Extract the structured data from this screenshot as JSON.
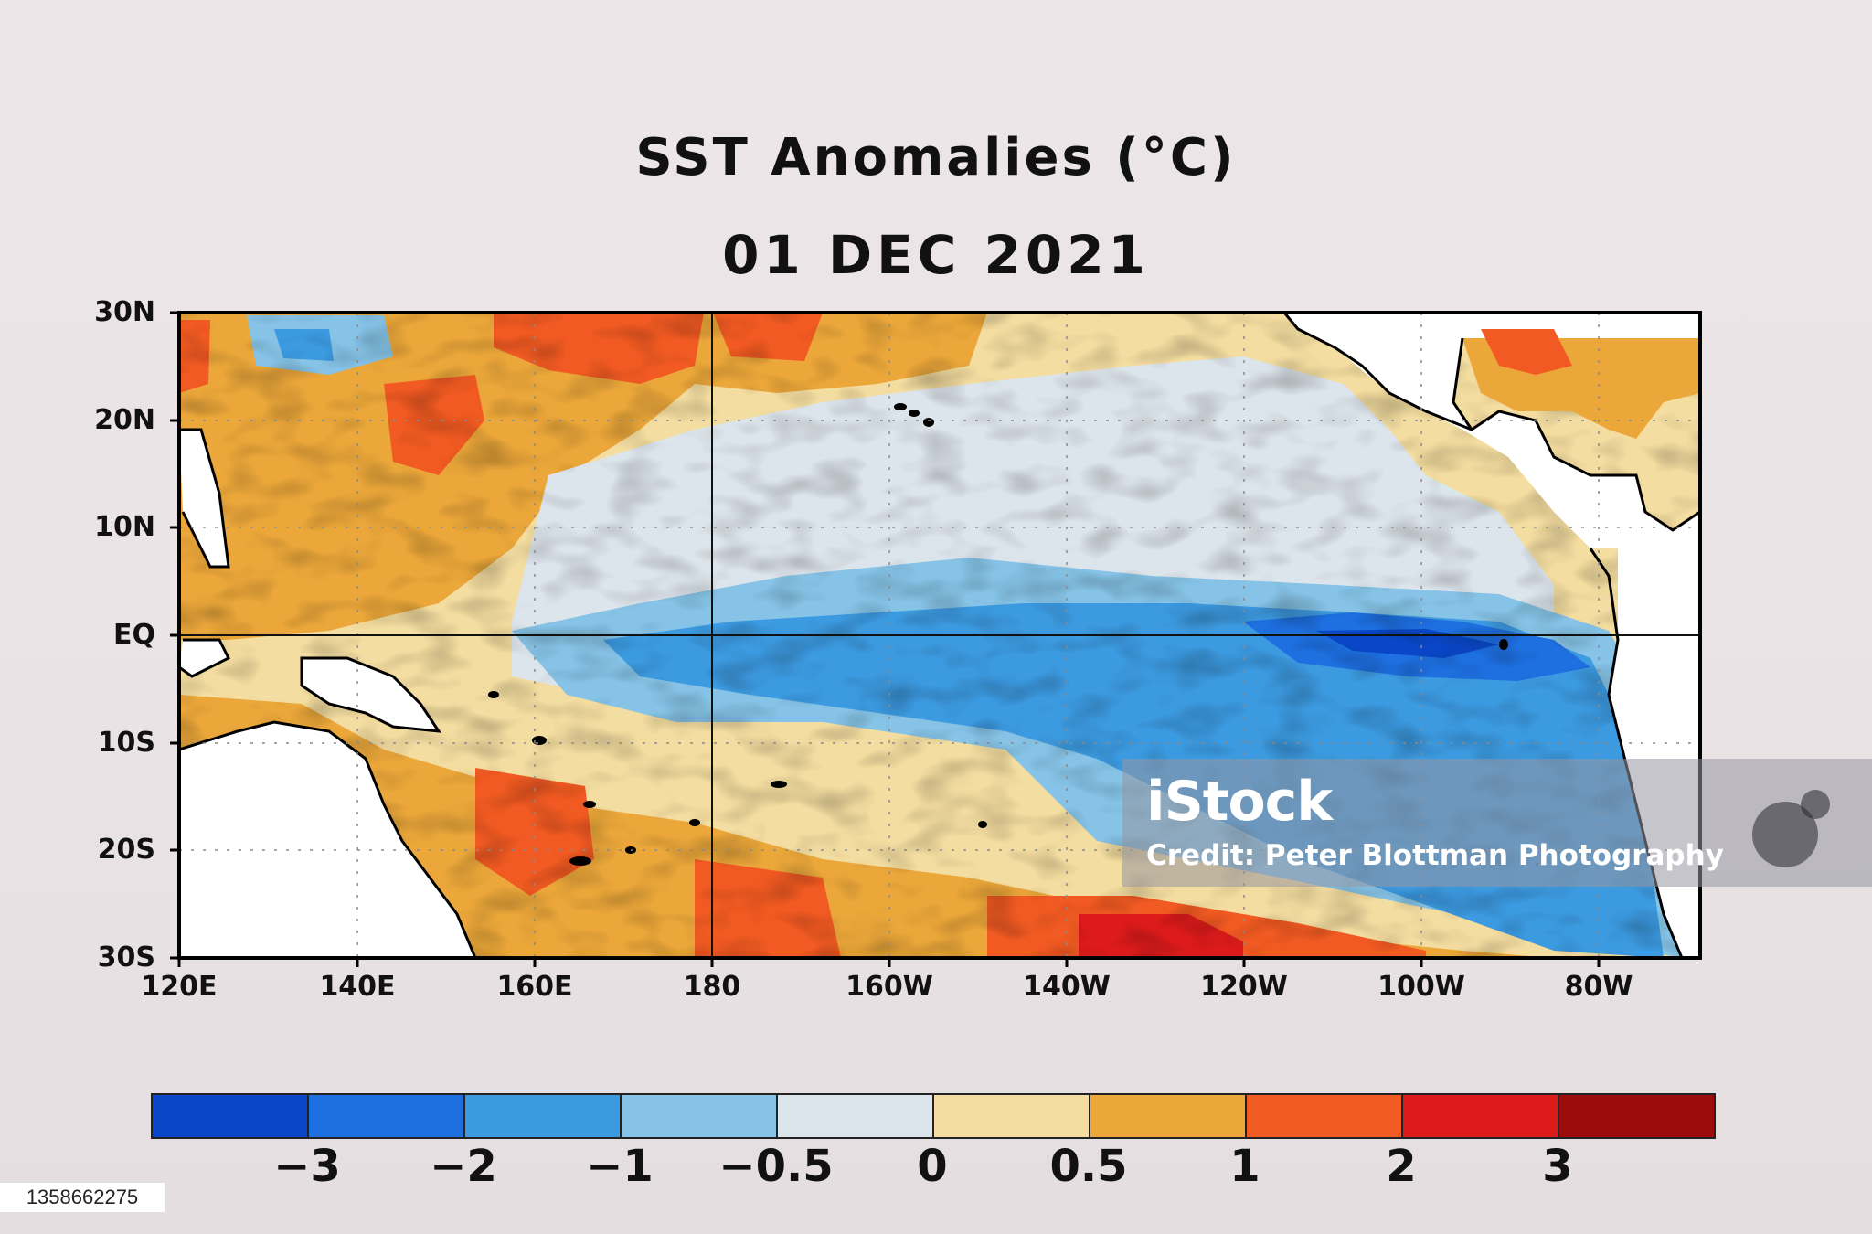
{
  "title": "SST Anomalies (°C)",
  "date": "01 DEC 2021",
  "map": {
    "lat_labels": [
      "30N",
      "20N",
      "10N",
      "EQ",
      "10S",
      "20S",
      "30S"
    ],
    "lon_labels": [
      "120E",
      "140E",
      "160E",
      "180",
      "160W",
      "140W",
      "120W",
      "100W",
      "80W"
    ],
    "lat_range": [
      -30,
      30
    ],
    "lon_range": [
      "120E",
      "70W"
    ]
  },
  "colorbar": {
    "colors": [
      "#0a47c8",
      "#1e6fe0",
      "#3c9ae0",
      "#86c3e6",
      "#dde5ec",
      "#f4dda0",
      "#eba73a",
      "#f15a22",
      "#dd1b1b",
      "#9c0c0c"
    ],
    "labels": [
      "−3",
      "−2",
      "−1",
      "−0.5",
      "0",
      "0.5",
      "1",
      "2",
      "3"
    ]
  },
  "watermark": {
    "brand": "iStock",
    "credit": "Credit: Peter Blottman Photography",
    "image_id": "1358662275"
  }
}
